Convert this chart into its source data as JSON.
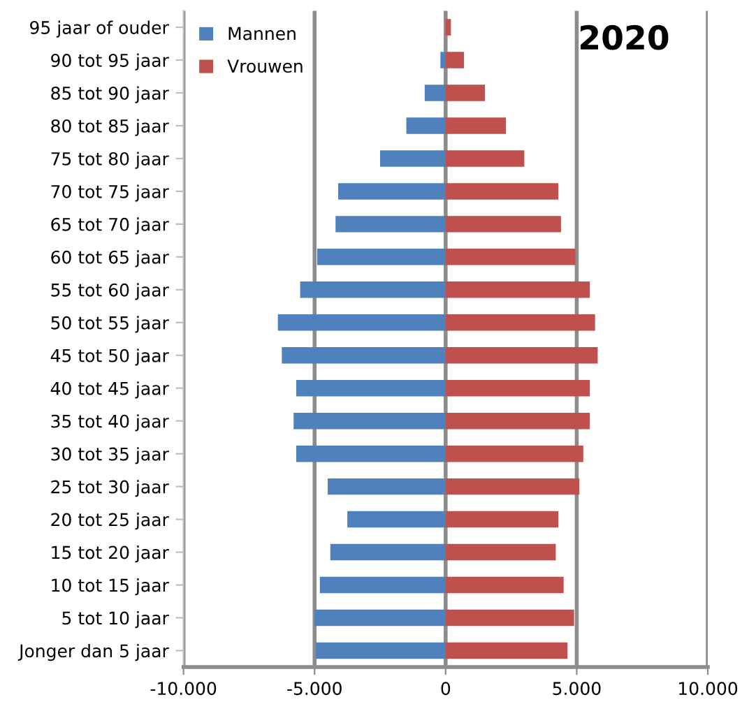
{
  "chart_data": {
    "type": "bar",
    "orientation": "horizontal",
    "title": "2020",
    "categories": [
      "95 jaar of ouder",
      "90 tot 95 jaar",
      "85 tot 90 jaar",
      "80 tot 85 jaar",
      "75 tot 80 jaar",
      "70 tot 75 jaar",
      "65 tot 70 jaar",
      "60 tot 65 jaar",
      "55 tot 60 jaar",
      "50 tot 55 jaar",
      "45 tot 50 jaar",
      "40 tot 45 jaar",
      "35 tot 40 jaar",
      "30 tot 35 jaar",
      "25 tot 30 jaar",
      "20 tot 25 jaar",
      "15 tot 20 jaar",
      "10 tot 15 jaar",
      "5 tot 10 jaar",
      "Jonger dan 5 jaar"
    ],
    "series": [
      {
        "name": "Mannen",
        "color": "#4f81bd",
        "values": [
          0,
          -200,
          -800,
          -1500,
          -2500,
          -4100,
          -4200,
          -4900,
          -5550,
          -6400,
          -6250,
          -5700,
          -5800,
          -5700,
          -4500,
          -3750,
          -4400,
          -4800,
          -5000,
          -4950
        ]
      },
      {
        "name": "Vrouwen",
        "color": "#c0504d",
        "values": [
          200,
          700,
          1500,
          2300,
          3000,
          4300,
          4400,
          4950,
          5500,
          5700,
          5800,
          5500,
          5500,
          5250,
          5100,
          4300,
          4200,
          4500,
          4900,
          4650
        ]
      }
    ],
    "xlim": [
      -10000,
      10000
    ],
    "xticks": [
      {
        "value": -10000,
        "label": "-10.000"
      },
      {
        "value": -5000,
        "label": "-5.000"
      },
      0,
      {
        "value": 5000,
        "label": "5.000"
      },
      {
        "value": 10000,
        "label": "10.000"
      }
    ],
    "grid": "x",
    "legend": "top left",
    "stacked": true
  }
}
